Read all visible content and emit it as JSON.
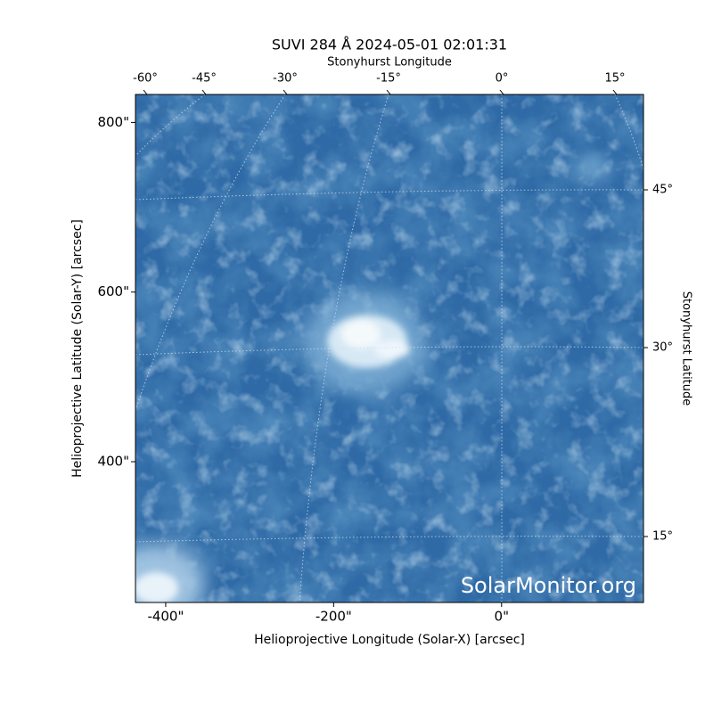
{
  "chart_data": {
    "type": "image",
    "title": "SUVI 284 Å 2024-05-01 02:01:31",
    "xlabel": "Helioprojective Longitude (Solar-X) [arcsec]",
    "ylabel": "Helioprojective Latitude (Solar-Y) [arcsec]",
    "x2label": "Stonyhurst Longitude",
    "y2label": "Stonyhurst Latitude",
    "watermark": "SolarMonitor.org",
    "xlim": [
      -436,
      169
    ],
    "ylim": [
      234,
      833
    ],
    "xticks": [
      {
        "value": -400,
        "label": "-400\""
      },
      {
        "value": -200,
        "label": "-200\""
      },
      {
        "value": 0,
        "label": "0\""
      }
    ],
    "yticks": [
      {
        "value": 400,
        "label": "400\""
      },
      {
        "value": 600,
        "label": "600\""
      },
      {
        "value": 800,
        "label": "800\""
      }
    ],
    "x2ticks": [
      {
        "value": -60,
        "label": "-60°"
      },
      {
        "value": -45,
        "label": "-45°"
      },
      {
        "value": -30,
        "label": "-30°"
      },
      {
        "value": -15,
        "label": "-15°"
      },
      {
        "value": 0,
        "label": "0°"
      },
      {
        "value": 15,
        "label": "15°"
      }
    ],
    "y2ticks": [
      {
        "value": 45,
        "label": "45°"
      },
      {
        "value": 30,
        "label": "30°"
      },
      {
        "value": 15,
        "label": "15°"
      }
    ]
  }
}
